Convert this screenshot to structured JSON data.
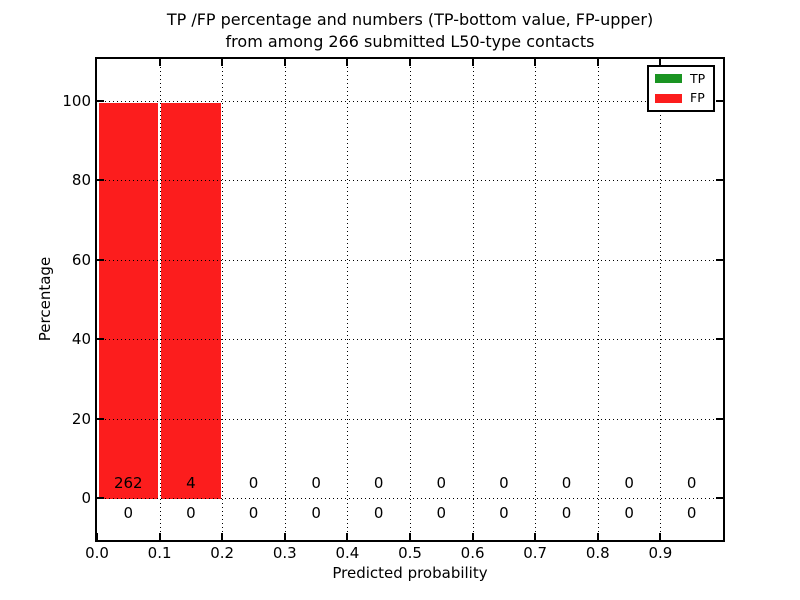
{
  "figure": {
    "title_line1": "TP /FP percentage and numbers (TP-bottom value, FP-upper)",
    "title_line2": "from among 266 submitted L50-type contacts"
  },
  "chart_data": {
    "type": "bar",
    "mode": "stacked-percentage-histogram",
    "title": "TP /FP percentage and numbers (TP-bottom value, FP-upper)",
    "subtitle": "from among 266 submitted L50-type contacts",
    "xlabel": "Predicted probability",
    "ylabel": "Percentage",
    "xlim": [
      0.0,
      1.0
    ],
    "ylim": [
      -10.5,
      110.5
    ],
    "bin_width": 0.1,
    "bin_edges": [
      0.0,
      0.1,
      0.2,
      0.3,
      0.4,
      0.5,
      0.6,
      0.7,
      0.8,
      0.9,
      1.0
    ],
    "x_tick_labels": [
      "0.0",
      "0.1",
      "0.2",
      "0.3",
      "0.4",
      "0.5",
      "0.6",
      "0.7",
      "0.8",
      "0.9"
    ],
    "y_tick_values": [
      0,
      20,
      40,
      60,
      80,
      100
    ],
    "y_tick_labels": [
      "0",
      "20",
      "40",
      "60",
      "80",
      "100"
    ],
    "grid": true,
    "grid_style": "dotted",
    "legend_position": "upper right",
    "total_contacts": 266,
    "series": [
      {
        "name": "TP",
        "color": "#1a9422",
        "stack_order": "bottom",
        "count_row": "below-baseline",
        "percent": [
          0,
          0,
          0,
          0,
          0,
          0,
          0,
          0,
          0,
          0
        ],
        "counts": [
          0,
          0,
          0,
          0,
          0,
          0,
          0,
          0,
          0,
          0
        ]
      },
      {
        "name": "FP",
        "color": "#fc1d1d",
        "stack_order": "top",
        "count_row": "above-baseline",
        "percent": [
          100,
          100,
          0,
          0,
          0,
          0,
          0,
          0,
          0,
          0
        ],
        "counts": [
          262,
          4,
          0,
          0,
          0,
          0,
          0,
          0,
          0,
          0
        ]
      }
    ]
  },
  "legend": {
    "items": [
      {
        "label": "TP",
        "color": "#1a9422"
      },
      {
        "label": "FP",
        "color": "#fc1d1d"
      }
    ]
  }
}
